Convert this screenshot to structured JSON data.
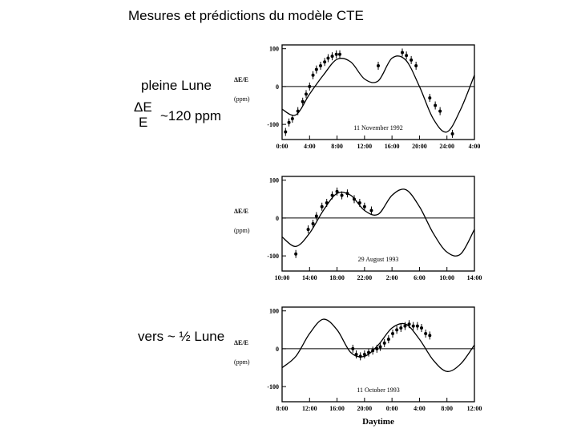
{
  "slide": {
    "title": "Mesures et prédictions du modèle CTE",
    "full_moon_label": "pleine Lune",
    "delta_num": "ΔE",
    "delta_den": "E",
    "amplitude_label": "~120 ppm",
    "half_moon_label": "vers ~ ½ Lune"
  },
  "chart_data": [
    {
      "type": "line",
      "title": "11 November 1992",
      "ylabel": "ΔE/E",
      "yunit": "(ppm)",
      "ylim": [
        -140,
        110
      ],
      "yticks": [
        "100",
        "0",
        "-100"
      ],
      "xticks": [
        "0:00",
        "4:00",
        "8:00",
        "12:00",
        "16:00",
        "20:00",
        "24:00",
        "4:00"
      ],
      "series": [
        {
          "values_x": [
            0,
            2,
            4,
            6,
            8,
            10,
            12,
            14,
            16,
            18,
            20,
            22,
            24,
            26,
            28
          ],
          "values_y": [
            -60,
            -75,
            -20,
            30,
            72,
            65,
            20,
            15,
            75,
            70,
            0,
            -85,
            -120,
            -60,
            30
          ]
        }
      ],
      "points_x": [
        0.5,
        1,
        1.5,
        2.3,
        3,
        3.5,
        4,
        4.5,
        5,
        5.6,
        6.2,
        6.7,
        7.3,
        7.9,
        8.4,
        14,
        17.5,
        18.1,
        18.8,
        19.5,
        21.5,
        22.3,
        23,
        24.8
      ],
      "points_y": [
        -120,
        -95,
        -85,
        -65,
        -40,
        -20,
        0,
        30,
        45,
        55,
        65,
        75,
        80,
        85,
        85,
        55,
        90,
        82,
        70,
        55,
        -30,
        -50,
        -65,
        -125
      ]
    },
    {
      "type": "line",
      "title": "29 August 1993",
      "ylabel": "ΔE/E",
      "yunit": "(ppm)",
      "ylim": [
        -140,
        110
      ],
      "yticks": [
        "100",
        "0",
        "-100"
      ],
      "xticks": [
        "10:00",
        "14:00",
        "18:00",
        "22:00",
        "2:00",
        "6:00",
        "10:00",
        "14:00"
      ],
      "series": [
        {
          "values_x": [
            0,
            2,
            4,
            6,
            8,
            10,
            12,
            14,
            16,
            18,
            20,
            22,
            24,
            26,
            28
          ],
          "values_y": [
            -50,
            -75,
            -40,
            20,
            65,
            60,
            20,
            10,
            60,
            75,
            30,
            -40,
            -90,
            -95,
            -30
          ]
        }
      ],
      "points_x": [
        2,
        3.8,
        4.5,
        5,
        5.8,
        6.5,
        7.3,
        8,
        8.7,
        9.5,
        10.5,
        11.3,
        12,
        13
      ],
      "points_y": [
        -95,
        -30,
        -15,
        5,
        30,
        40,
        60,
        70,
        60,
        65,
        50,
        40,
        30,
        20
      ]
    },
    {
      "type": "line",
      "title": "11 October 1993",
      "xlabel": "Daytime",
      "ylabel": "ΔE/E",
      "yunit": "(ppm)",
      "ylim": [
        -140,
        110
      ],
      "yticks": [
        "100",
        "0",
        "-100"
      ],
      "xticks": [
        "8:00",
        "12:00",
        "16:00",
        "20:00",
        "0:00",
        "4:00",
        "8:00",
        "12:00"
      ],
      "series": [
        {
          "values_x": [
            0,
            2,
            4,
            6,
            8,
            10,
            12,
            14,
            16,
            18,
            20,
            22,
            24,
            26,
            28
          ],
          "values_y": [
            -50,
            -20,
            40,
            78,
            50,
            -10,
            -20,
            10,
            55,
            65,
            25,
            -30,
            -60,
            -40,
            10
          ]
        }
      ],
      "points_x": [
        10.3,
        10.8,
        11.4,
        12,
        12.6,
        13.2,
        13.8,
        14.3,
        14.9,
        15.5,
        16.1,
        16.7,
        17.3,
        17.9,
        18.5,
        19.1,
        19.7,
        20.3,
        20.9,
        21.5
      ],
      "points_y": [
        0,
        -15,
        -20,
        -15,
        -10,
        -5,
        0,
        5,
        15,
        25,
        40,
        50,
        55,
        60,
        65,
        60,
        60,
        55,
        40,
        35
      ]
    }
  ]
}
